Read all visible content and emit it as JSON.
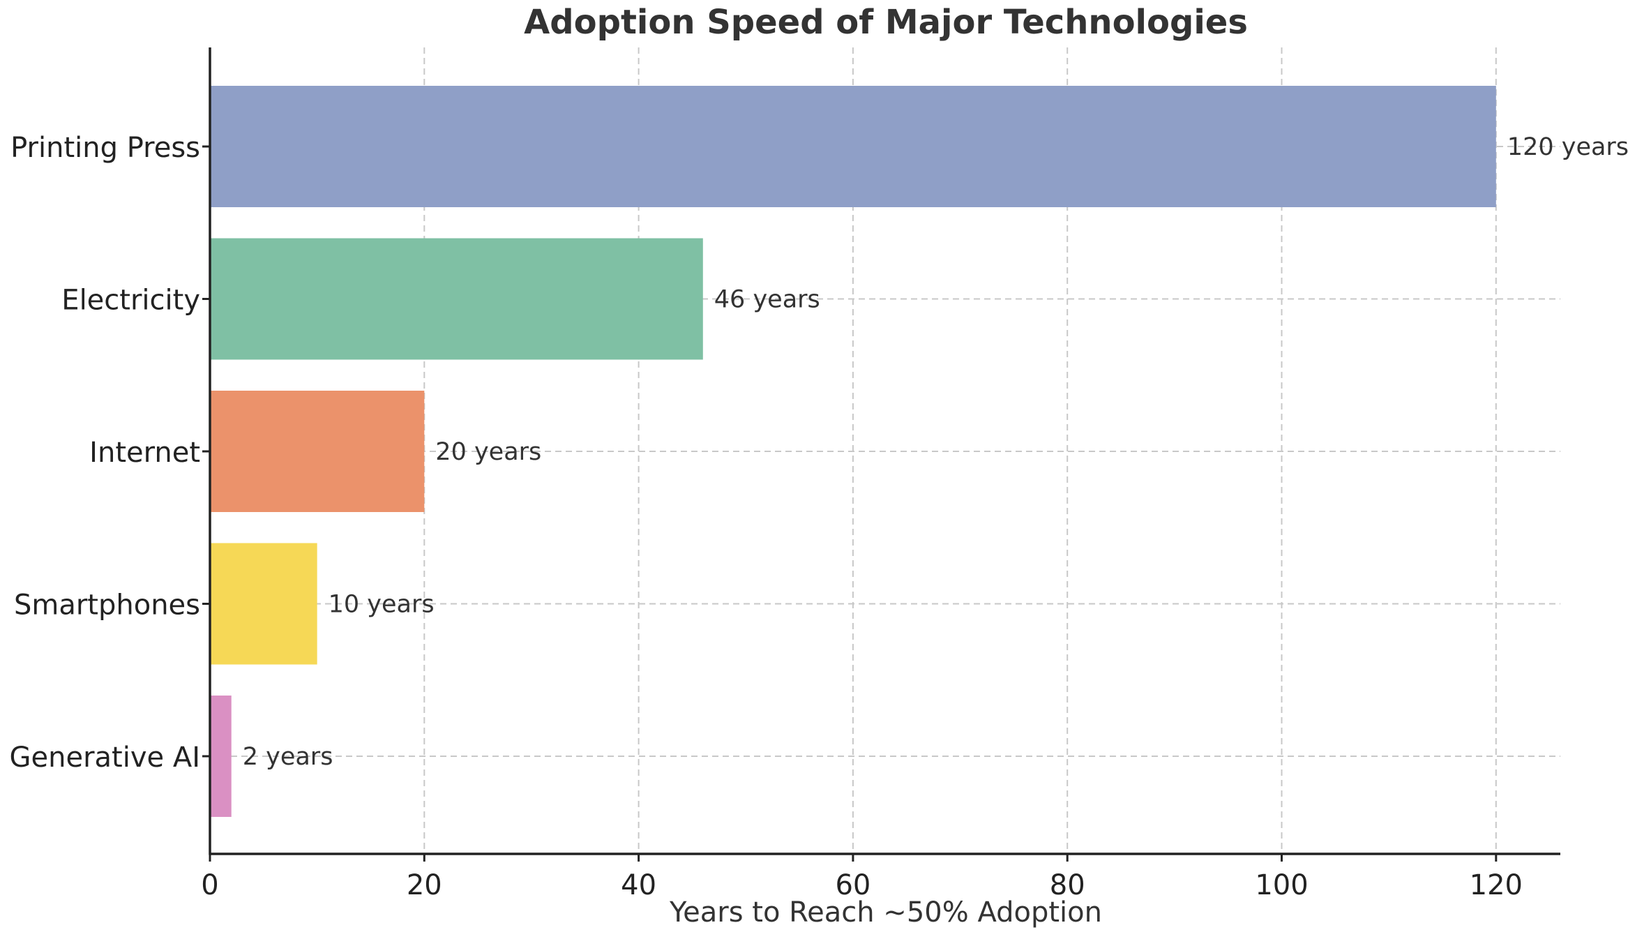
{
  "chart_data": {
    "type": "bar",
    "orientation": "horizontal",
    "title": "Adoption Speed of Major Technologies",
    "xlabel": "Years to Reach ~50% Adoption",
    "ylabel": "",
    "categories": [
      "Printing Press",
      "Electricity",
      "Internet",
      "Smartphones",
      "Generative AI"
    ],
    "values": [
      120,
      46,
      20,
      10,
      2
    ],
    "data_labels": [
      "120 years",
      "46 years",
      "20 years",
      "10 years",
      "2 years"
    ],
    "colors": [
      "#8f9fc7",
      "#7fc0a4",
      "#eb926b",
      "#f6d856",
      "#da90c3"
    ],
    "xlim": [
      0,
      126
    ],
    "xticks": [
      0,
      20,
      40,
      60,
      80,
      100,
      120
    ],
    "grid": true,
    "legend": "none"
  }
}
